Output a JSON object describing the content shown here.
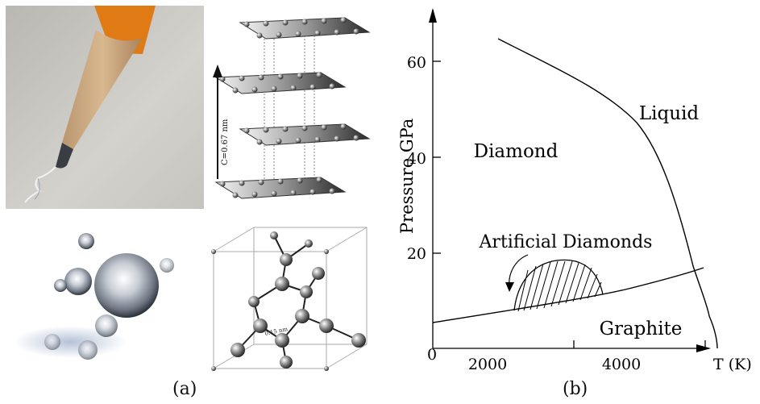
{
  "captions": {
    "a": "(a)",
    "b": "(b)"
  },
  "graphite_lattice": {
    "spacing_label": "C=0.67 nm"
  },
  "diamond_lattice": {
    "bond_label": "0.15 nm"
  },
  "phase_diagram": {
    "ylabel": "Pressure GPa",
    "xlabel": "T (K)",
    "origin_label": "0",
    "x_ticks": [
      "2000",
      "4000"
    ],
    "y_ticks": [
      "20",
      "40",
      "60"
    ],
    "regions": {
      "liquid": "Liquid",
      "diamond": "Diamond",
      "graphite": "Graphite",
      "artificial": "Artificial Diamonds"
    }
  }
}
